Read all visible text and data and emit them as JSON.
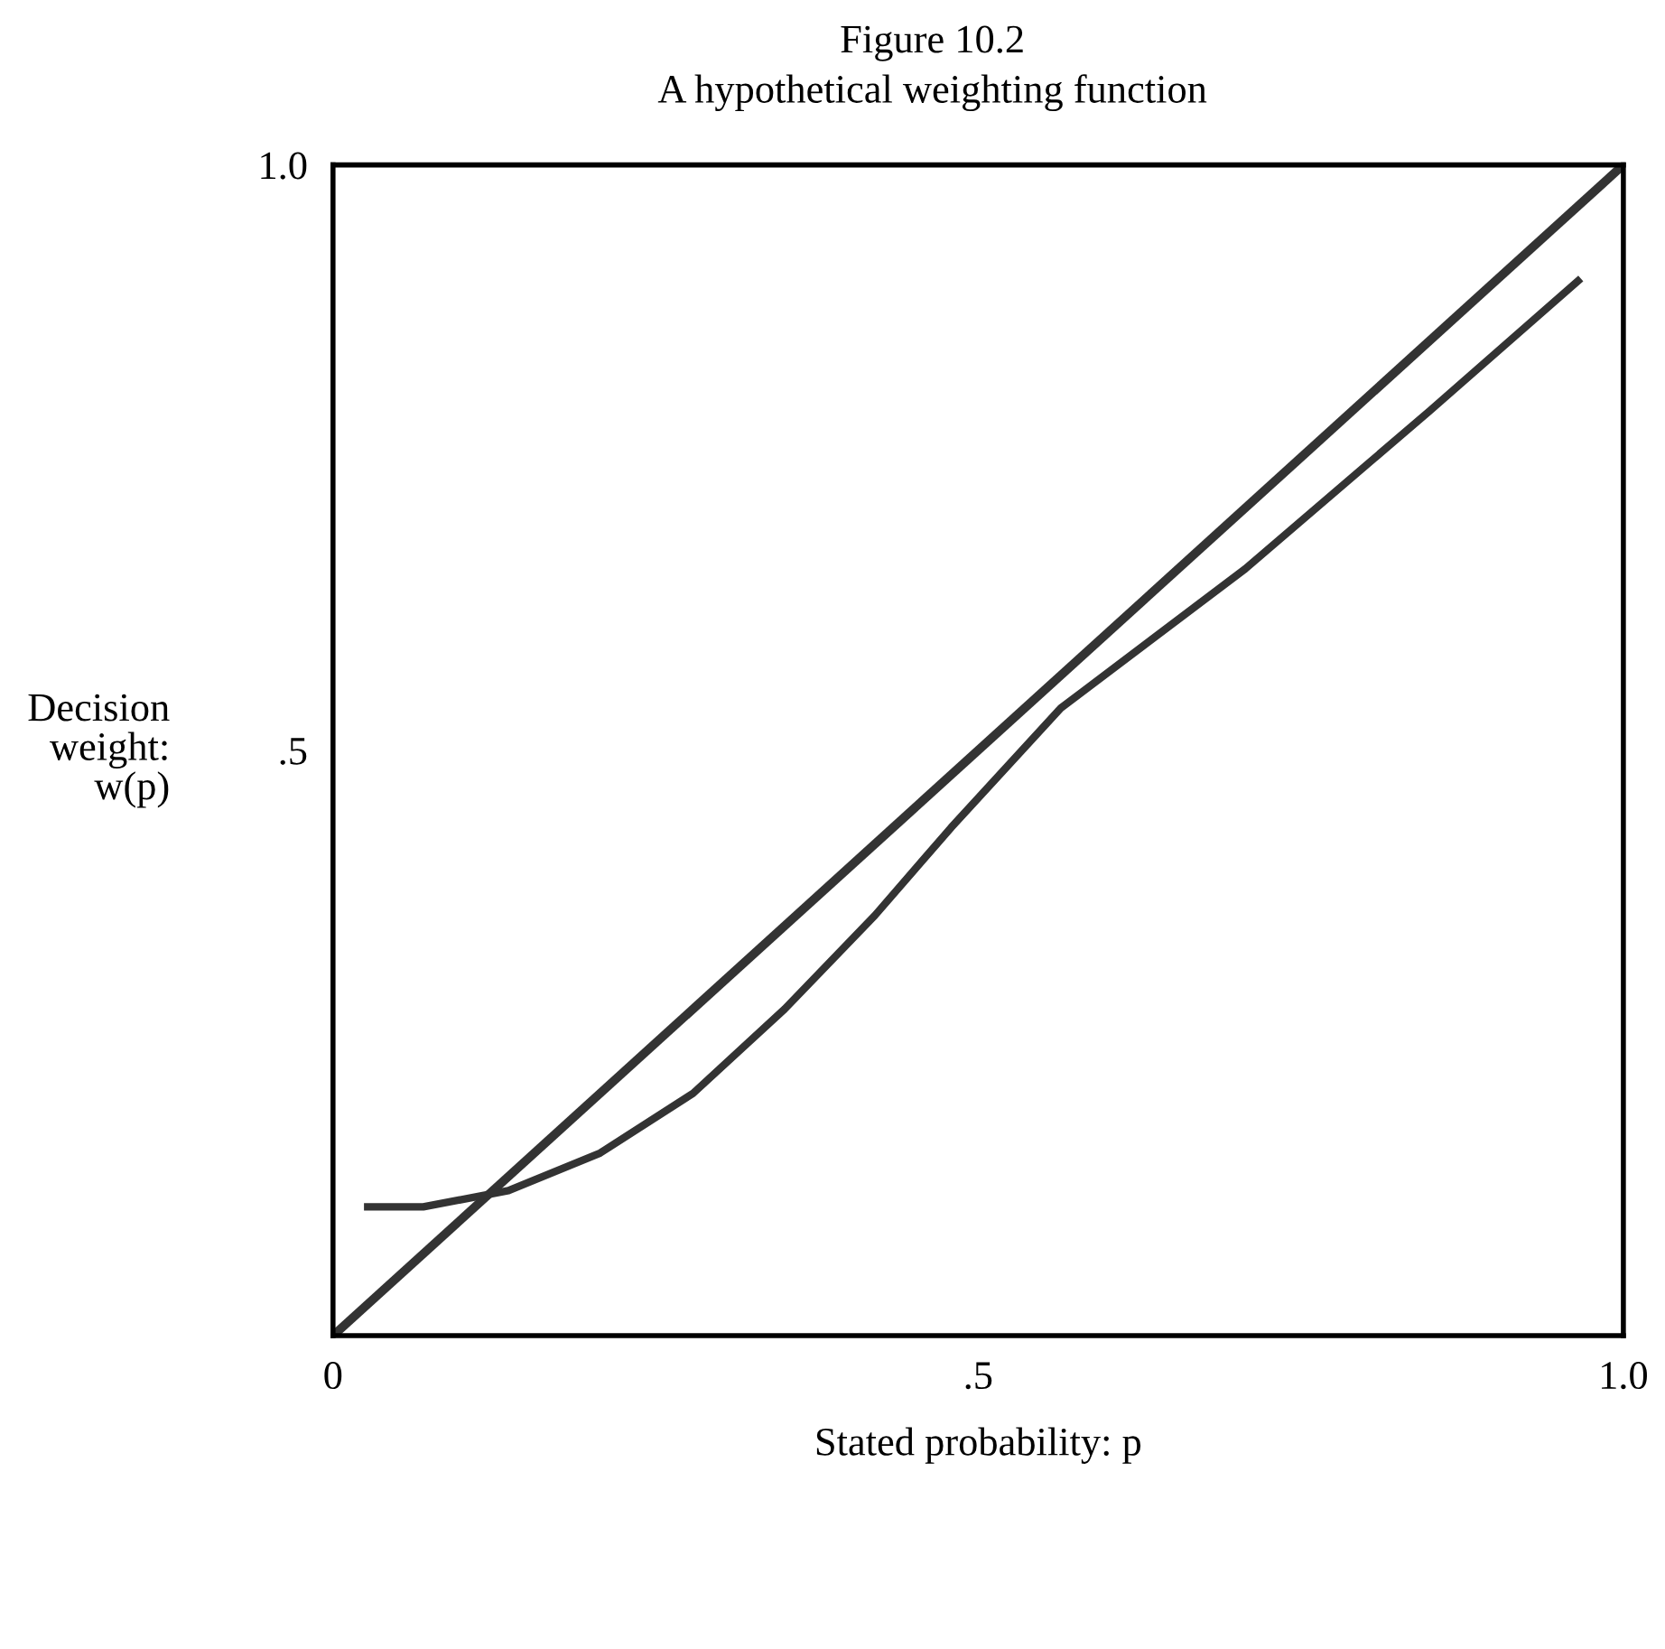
{
  "chart_data": {
    "type": "line",
    "title": "Figure 10.2",
    "subtitle": "A hypothetical weighting function",
    "xlabel": "Stated probability: p",
    "ylabel": "Decision\nweight:\nw(p)",
    "xlim": [
      0,
      1
    ],
    "ylim": [
      0,
      1
    ],
    "xticks": [
      0,
      {
        "value": 0.5,
        "label": ".5"
      },
      {
        "value": 1,
        "label": "1.0"
      }
    ],
    "yticks": [
      {
        "value": 0.5,
        "label": ".5"
      },
      {
        "value": 1,
        "label": "1.0"
      }
    ],
    "grid": false,
    "marker": "none",
    "line_style": "solid",
    "series": [
      {
        "color": "#333333",
        "x": [
          0,
          1
        ],
        "values": [
          0,
          1
        ]
      },
      {
        "color": "#333333",
        "x": [
          0.024,
          0.07,
          0.136,
          0.207,
          0.279,
          0.35,
          0.42,
          0.479,
          0.564,
          0.707,
          0.85,
          0.967
        ],
        "values": [
          0.11,
          0.11,
          0.124,
          0.156,
          0.207,
          0.279,
          0.359,
          0.434,
          0.536,
          0.655,
          0.79,
          0.903
        ]
      }
    ]
  }
}
